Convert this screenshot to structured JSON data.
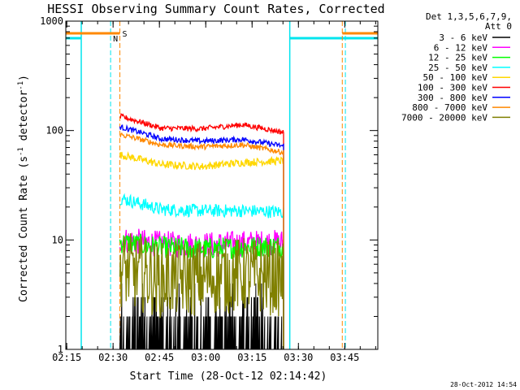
{
  "chart_data": {
    "type": "line",
    "title": "HESSI Observing Summary Count Rates, Corrected",
    "xlabel": "Start Time (28-Oct-12 02:14:42)",
    "ylabel_main": "Corrected Count Rate (s",
    "ylabel_sup1": "-1",
    "ylabel_mid": " detector",
    "ylabel_sup2": "-1",
    "ylabel_end": ")",
    "yscale": "log",
    "ylim": [
      1,
      1000
    ],
    "xlim_minutes": [
      0,
      101
    ],
    "x_ticks": [
      {
        "label": "02:15",
        "value": 0.3
      },
      {
        "label": "02:30",
        "value": 15.3
      },
      {
        "label": "02:45",
        "value": 30.3
      },
      {
        "label": "03:00",
        "value": 45.3
      },
      {
        "label": "03:15",
        "value": 60.3
      },
      {
        "label": "03:30",
        "value": 75.3
      },
      {
        "label": "03:45",
        "value": 90.3
      }
    ],
    "y_ticks": [
      {
        "label": "1",
        "value": 1
      },
      {
        "label": "10",
        "value": 10
      },
      {
        "label": "100",
        "value": 100
      },
      {
        "label": "1000",
        "value": 1000
      }
    ],
    "legend": {
      "header1": "Det 1,3,5,6,7,9,",
      "header2": "Att 0",
      "placement": "right"
    },
    "series": [
      {
        "name": "3 - 6 keV",
        "color": "#000000",
        "level": [
          1.6,
          1.6,
          1.6,
          1.6,
          1.6
        ],
        "noise": 0.45,
        "sparse": true
      },
      {
        "name": "6 - 12 keV",
        "color": "#ff00ff",
        "level": [
          10,
          9.2,
          9,
          9.3,
          9.5
        ],
        "noise": 0.12
      },
      {
        "name": "12 - 25 keV",
        "color": "#00ff00",
        "level": [
          9.5,
          8.6,
          8.3,
          8.6,
          8.8
        ],
        "noise": 0.1
      },
      {
        "name": "25 - 50 keV",
        "color": "#00ffff",
        "level": [
          24,
          19,
          18.5,
          18.5,
          18
        ],
        "noise": 0.06
      },
      {
        "name": "50 - 100 keV",
        "color": "#ffd700",
        "level": [
          60,
          49,
          47,
          51,
          53
        ],
        "noise": 0.035
      },
      {
        "name": "100 - 300 keV",
        "color": "#ff0000",
        "level": [
          135,
          105,
          104,
          113,
          96
        ],
        "noise": 0.025
      },
      {
        "name": "300 - 800 keV",
        "color": "#0000ff",
        "level": [
          108,
          84,
          80,
          83,
          72
        ],
        "noise": 0.025
      },
      {
        "name": "800 - 7000 keV",
        "color": "#ff8800",
        "level": [
          92,
          74,
          71,
          74,
          63
        ],
        "noise": 0.025
      },
      {
        "name": "7000 - 20000 keV",
        "color": "#808000",
        "level": [
          5.5,
          4.3,
          4.5,
          4.8,
          4.4
        ],
        "noise": 0.35
      }
    ],
    "data_start_minute": 17.5,
    "data_end_minute": 70.5,
    "markers": {
      "night_cyan": [
        5,
        72.5
      ],
      "saa_orange_dashed": [
        17.5,
        89.5
      ],
      "cyan_dashed": [
        14.5,
        90.5
      ],
      "flag_S": "S",
      "flag_N": "N"
    },
    "timestamp": "28-Oct-2012 14:54"
  }
}
